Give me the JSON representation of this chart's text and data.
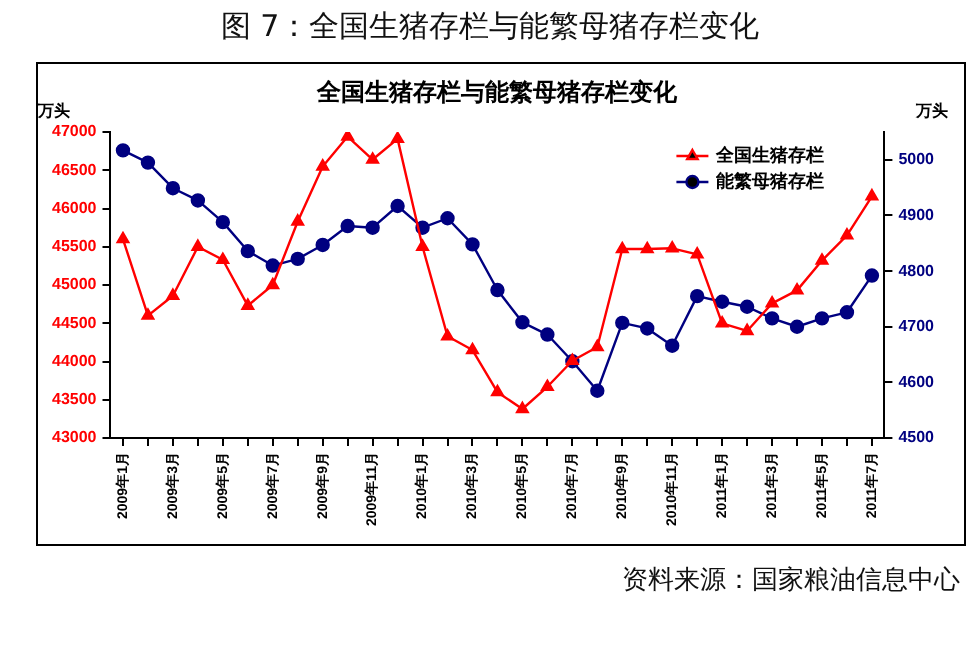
{
  "chart_data": {
    "type": "line",
    "title": "全国生猪存栏与能繁母猪存栏变化",
    "subtitle": "图 7：全国生猪存栏与能繁母猪存栏变化",
    "ylabel": "万头",
    "y2label": "万头",
    "categories": [
      "2009年1月",
      null,
      "2009年3月",
      null,
      "2009年5月",
      null,
      "2009年7月",
      null,
      "2009年9月",
      null,
      "2009年11月",
      null,
      "2010年1月",
      null,
      "2010年3月",
      null,
      "2010年5月",
      null,
      "2010年7月",
      null,
      "2010年9月",
      null,
      "2010年11月",
      null,
      "2011年1月",
      null,
      "2011年3月",
      null,
      "2011年5月",
      null,
      "2011年7月"
    ],
    "series": [
      {
        "name": "全国生猪存栏",
        "color": "#ff0000",
        "marker": "triangle",
        "values": [
          45600,
          44600,
          44860,
          45500,
          45330,
          44730,
          45000,
          45830,
          46550,
          46940,
          46640,
          46910,
          45500,
          44330,
          44150,
          43600,
          43380,
          43670,
          44010,
          44190,
          45470,
          45470,
          45480,
          45400,
          44500,
          44400,
          44760,
          44930,
          45320,
          45650,
          46160
        ]
      },
      {
        "name": "能繁母猪存栏",
        "color": "#000080",
        "marker": "circle",
        "axis": "y2",
        "values": [
          5017,
          4995,
          4949,
          4927,
          4888,
          4836,
          4810,
          4822,
          4847,
          4881,
          4878,
          4917,
          4878,
          4895,
          4848,
          4766,
          4708,
          4686,
          4638,
          4585,
          4707,
          4697,
          4666,
          4755,
          4745,
          4736,
          4715,
          4700,
          4715,
          4726,
          4792
        ]
      }
    ],
    "ylim": [
      43000,
      47000
    ],
    "yticks": [
      43000,
      43500,
      44000,
      44500,
      45000,
      45500,
      46000,
      46500,
      47000
    ],
    "y2lim": [
      4500,
      5050
    ],
    "y2ticks": [
      4500,
      4600,
      4700,
      4800,
      4900,
      5000
    ],
    "grid": false,
    "legend": "top right",
    "line_style": "solid",
    "annotations": [
      "资料来源：国家粮油信息中心"
    ]
  }
}
